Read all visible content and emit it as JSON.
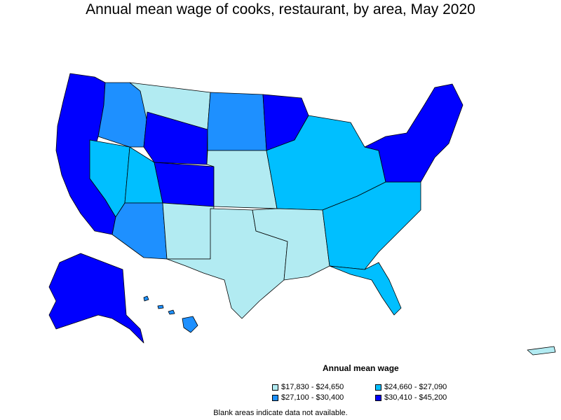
{
  "title": "Annual mean wage of cooks, restaurant, by area, May 2020",
  "legend": {
    "title": "Annual mean wage",
    "bins": [
      {
        "label": "$17,830 - $24,650",
        "color": "#b2ebf2"
      },
      {
        "label": "$24,660 - $27,090",
        "color": "#00bfff"
      },
      {
        "label": "$27,100 - $30,400",
        "color": "#1e90ff"
      },
      {
        "label": "$30,410 - $45,200",
        "color": "#0000ff"
      }
    ]
  },
  "note": "Blank areas indicate data not available.",
  "regions": [
    {
      "name": "alaska",
      "bin": 3
    },
    {
      "name": "hawaii",
      "bin": 2
    },
    {
      "name": "puerto-rico",
      "bin": 0
    },
    {
      "name": "pacific-coast",
      "bin": 3
    },
    {
      "name": "nevada",
      "bin": 1
    },
    {
      "name": "idaho-north",
      "bin": 2
    },
    {
      "name": "montana",
      "bin": 0
    },
    {
      "name": "wyoming-west",
      "bin": 3
    },
    {
      "name": "utah",
      "bin": 1
    },
    {
      "name": "colorado",
      "bin": 3
    },
    {
      "name": "arizona",
      "bin": 2
    },
    {
      "name": "new-mexico",
      "bin": 0
    },
    {
      "name": "dakotas",
      "bin": 2
    },
    {
      "name": "nebraska-kansas",
      "bin": 0
    },
    {
      "name": "minnesota",
      "bin": 3
    },
    {
      "name": "midwest",
      "bin": 1
    },
    {
      "name": "texas",
      "bin": 0
    },
    {
      "name": "south-central",
      "bin": 0
    },
    {
      "name": "southeast",
      "bin": 1
    },
    {
      "name": "florida",
      "bin": 1
    },
    {
      "name": "northeast",
      "bin": 3
    }
  ]
}
